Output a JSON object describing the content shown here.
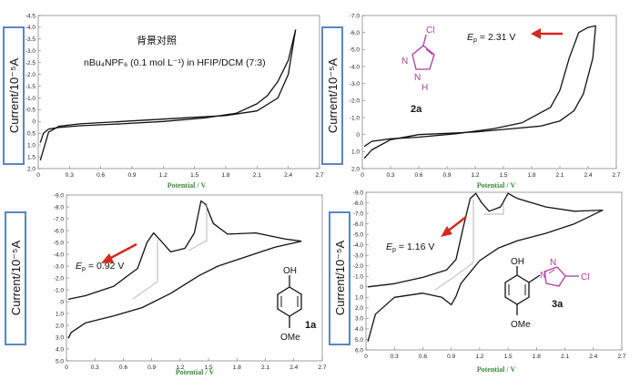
{
  "chart_data": [
    {
      "type": "line",
      "id": "blank",
      "xlabel": "Potential / V",
      "ylabel": "Current/10⁻⁵A",
      "xlim": [
        0,
        2.7
      ],
      "ylim": [
        -4.5,
        2.0
      ],
      "y_inverted": true,
      "xticks": [
        "0",
        "0.3",
        "0.6",
        "0.9",
        "1.2",
        "1.5",
        "1.8",
        "2.1",
        "2.4",
        "2.7"
      ],
      "yticks": [
        "-4.5",
        "-4.0",
        "-3.5",
        "-3.0",
        "-2.5",
        "-2.0",
        "-1.5",
        "-1.0",
        "-0.5",
        "0",
        "0.5",
        "1.0",
        "1.5",
        "2.0"
      ],
      "annotations": [
        "背景对照",
        "nBu₄NPF₆ (0.1 mol L⁻¹) in HFIP/DCM (7:3)"
      ],
      "series": [
        {
          "x": [
            0.02,
            0.05,
            0.1,
            0.2,
            0.4,
            0.8,
            1.2,
            1.6,
            1.9,
            2.1,
            2.2,
            2.3,
            2.4,
            2.47
          ],
          "y": [
            0.9,
            0.5,
            0.32,
            0.25,
            0.18,
            0.1,
            0.0,
            -0.15,
            -0.35,
            -0.75,
            -1.1,
            -1.7,
            -2.6,
            -3.9
          ]
        },
        {
          "x": [
            2.47,
            2.4,
            2.3,
            2.1,
            1.8,
            1.5,
            1.2,
            0.8,
            0.4,
            0.2,
            0.1,
            0.05,
            0.02
          ],
          "y": [
            -3.9,
            -2.0,
            -1.0,
            -0.45,
            -0.25,
            -0.18,
            -0.1,
            0.0,
            0.1,
            0.2,
            0.45,
            1.2,
            1.65
          ]
        }
      ]
    },
    {
      "type": "line",
      "id": "2a",
      "xlabel": "Potential / V",
      "ylabel": "Current/10⁻⁵A",
      "xlim": [
        0,
        2.7
      ],
      "ylim": [
        -7.0,
        2.0
      ],
      "y_inverted": true,
      "xticks": [
        "0",
        "0.3",
        "0.6",
        "0.9",
        "1.2",
        "1.5",
        "1.8",
        "2.1",
        "2.4",
        "2.7"
      ],
      "yticks": [
        "-7.0",
        "-6.0",
        "-5.0",
        "-4.0",
        "-3.0",
        "-2.0",
        "-1.0",
        "0",
        "1.0",
        "2.0"
      ],
      "annotation": "Ep = 2.31 V",
      "compound_label": "2a",
      "series": [
        {
          "x": [
            0.02,
            0.1,
            0.3,
            0.6,
            1.0,
            1.4,
            1.7,
            2.0,
            2.1,
            2.2,
            2.3,
            2.4,
            2.48
          ],
          "y": [
            0.7,
            0.4,
            0.25,
            0.15,
            -0.05,
            -0.35,
            -0.7,
            -1.6,
            -2.6,
            -4.5,
            -6.0,
            -6.3,
            -6.4
          ]
        },
        {
          "x": [
            2.48,
            2.45,
            2.35,
            2.25,
            2.1,
            1.9,
            1.6,
            1.2,
            0.6,
            0.3,
            0.1,
            0.02
          ],
          "y": [
            -6.4,
            -4.5,
            -2.4,
            -1.4,
            -0.8,
            -0.5,
            -0.35,
            -0.15,
            0.0,
            0.3,
            0.9,
            1.4
          ]
        }
      ]
    },
    {
      "type": "line",
      "id": "1a",
      "xlabel": "Potential / V",
      "ylabel": "Current/10⁻⁵A",
      "xlim": [
        0,
        2.7
      ],
      "ylim": [
        -9.0,
        5.0
      ],
      "y_inverted": true,
      "xticks": [
        "0",
        "0.3",
        "0.6",
        "0.9",
        "1.2",
        "1.5",
        "1.8",
        "2.1",
        "2.4",
        "2.7"
      ],
      "yticks": [
        "-9.0",
        "-8.0",
        "-7.0",
        "-6.0",
        "-5.0",
        "-4.0",
        "-3.0",
        "-2.0",
        "-1.0",
        "0",
        "1.0",
        "2.0",
        "3.0",
        "4.0",
        "5.0"
      ],
      "annotation": "Ep = 0.92 V",
      "compound_label": "1a",
      "series": [
        {
          "x": [
            0.02,
            0.2,
            0.5,
            0.75,
            0.85,
            0.92,
            1.0,
            1.1,
            1.25,
            1.35,
            1.42,
            1.47,
            1.55,
            1.7,
            2.0,
            2.3,
            2.48
          ],
          "y": [
            -0.2,
            -0.5,
            -1.3,
            -2.8,
            -5.0,
            -5.8,
            -5.1,
            -4.2,
            -4.5,
            -5.8,
            -8.5,
            -8.2,
            -6.6,
            -5.7,
            -5.8,
            -5.3,
            -5.1
          ]
        },
        {
          "x": [
            2.48,
            2.2,
            1.9,
            1.6,
            1.4,
            1.1,
            0.8,
            0.5,
            0.2,
            0.05,
            0.02
          ],
          "y": [
            -5.1,
            -4.6,
            -3.8,
            -3.0,
            -2.2,
            -0.7,
            0.5,
            1.2,
            1.8,
            2.6,
            3.1
          ]
        }
      ]
    },
    {
      "type": "line",
      "id": "3a",
      "xlabel": "Potential / V",
      "ylabel": "Current/10⁻⁵A",
      "xlim": [
        0,
        2.7
      ],
      "ylim": [
        -9.0,
        6.0
      ],
      "y_inverted": true,
      "xticks": [
        "0",
        "0.3",
        "0.6",
        "0.9",
        "1.2",
        "1.5",
        "1.8",
        "2.1",
        "2.4",
        "2.7"
      ],
      "yticks": [
        "-9.0",
        "-8.0",
        "-7.0",
        "-6.0",
        "-5.0",
        "-4.0",
        "-3.0",
        "-2.0",
        "-1.0",
        "0",
        "1.0",
        "2.0",
        "3.0",
        "4.0",
        "5.0",
        "6.0"
      ],
      "annotation": "Ep = 1.16 V",
      "compound_label": "3a",
      "series": [
        {
          "x": [
            0.02,
            0.3,
            0.6,
            0.85,
            0.95,
            1.03,
            1.1,
            1.16,
            1.22,
            1.3,
            1.42,
            1.5,
            1.6,
            1.9,
            2.2,
            2.5
          ],
          "y": [
            0.0,
            -0.3,
            -0.9,
            -1.6,
            -2.6,
            -5.8,
            -8.4,
            -8.9,
            -8.0,
            -7.2,
            -7.6,
            -8.9,
            -8.4,
            -7.6,
            -7.2,
            -7.3
          ]
        },
        {
          "x": [
            2.5,
            2.2,
            1.9,
            1.6,
            1.4,
            1.2,
            1.1,
            1.0,
            0.95,
            0.9,
            0.8,
            0.6,
            0.3,
            0.1,
            0.02
          ],
          "y": [
            -7.3,
            -6.0,
            -5.1,
            -4.4,
            -3.7,
            -2.5,
            -1.4,
            -0.3,
            0.9,
            1.7,
            1.0,
            0.6,
            1.0,
            2.6,
            5.2
          ]
        }
      ]
    }
  ],
  "labels": {
    "xlabel": "Potential / V",
    "ylabel": "Current/10⁻⁵A",
    "blank_title": "背景对照",
    "blank_subtitle": "nBu₄NPF₆ (0.1 mol L⁻¹) in HFIP/DCM (7:3)",
    "ep_2a": "= 2.31 V",
    "ep_1a": "= 0.92 V",
    "ep_3a": "= 1.16 V",
    "ep_symbol": "E",
    "ep_sub": "p",
    "cmpd_2a": "2a",
    "cmpd_1a": "1a",
    "cmpd_3a": "3a",
    "atom_cl": "Cl",
    "atom_n": "N",
    "atom_nh": "N",
    "atom_h": "H",
    "atom_oh": "OH",
    "atom_ome": "OMe"
  },
  "colors": {
    "arrow": "#d42a1e",
    "axis_label": "#3a8a3a",
    "molecule_pink": "#b03aa0",
    "ylabel_border": "#5a86c0"
  }
}
